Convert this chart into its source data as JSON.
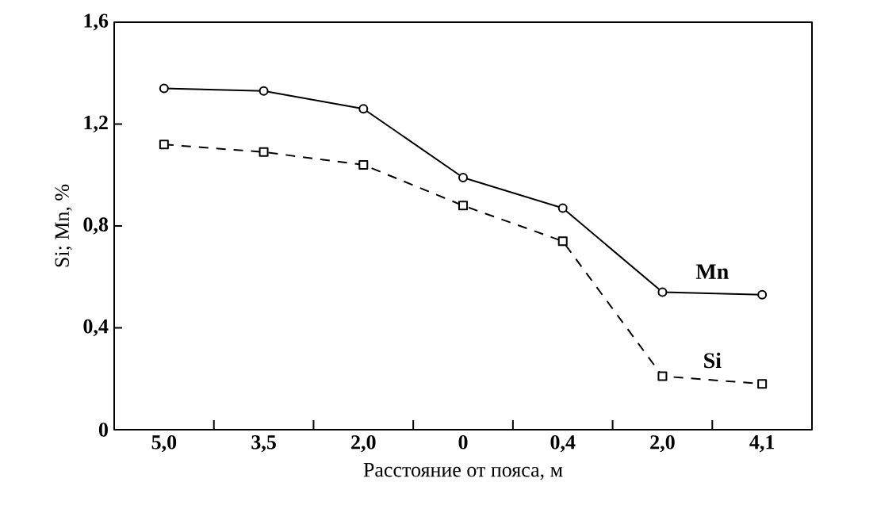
{
  "chart_data": {
    "type": "line",
    "xlabel": "Расстояние от пояса, м",
    "ylabel": "Si; Mn, %",
    "categories": [
      "5,0",
      "3,5",
      "2,0",
      "0",
      "0,4",
      "2,0",
      "4,1"
    ],
    "ylim": [
      0,
      1.6
    ],
    "yticks": [
      {
        "value": 0,
        "label": "0"
      },
      {
        "value": 0.4,
        "label": "0,4"
      },
      {
        "value": 0.8,
        "label": "0,8"
      },
      {
        "value": 1.2,
        "label": "1,2"
      },
      {
        "value": 1.6,
        "label": "1,6"
      }
    ],
    "grid": false,
    "legend": false,
    "series": [
      {
        "name": "Mn",
        "color": "#000000",
        "marker": "circle",
        "line_style": "solid",
        "values": [
          1.34,
          1.33,
          1.26,
          0.99,
          0.87,
          0.54,
          0.53
        ]
      },
      {
        "name": "Si",
        "color": "#000000",
        "marker": "square",
        "line_style": "dashed",
        "values": [
          1.12,
          1.09,
          1.04,
          0.88,
          0.74,
          0.21,
          0.18
        ]
      }
    ]
  }
}
